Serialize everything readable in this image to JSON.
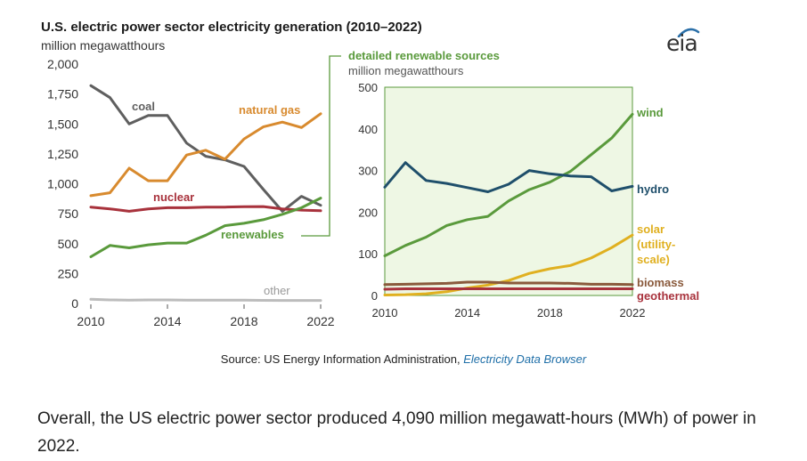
{
  "page": {
    "source_prefix": "Source: US Energy Information Administration, ",
    "source_link": "Electricity Data Browser",
    "caption": "Overall, the US electric power sector produced 4,090 million megawatt-hours (MWh) of power in 2022.",
    "logo": "eia"
  },
  "colors": {
    "coal": "#5f5f5f",
    "natural_gas": "#d88a2e",
    "nuclear": "#a8323c",
    "renewables": "#5a9a3c",
    "other": "#bcbcbc",
    "wind": "#5a9a3c",
    "hydro": "#1f4f6b",
    "solar": "#e0b020",
    "biomass": "#8a5a3c",
    "geothermal": "#a8323c",
    "panel_bg": "#eef7e4",
    "panel_border": "#5a9a3c"
  },
  "chart_data": [
    {
      "type": "line",
      "title": "U.S. electric power sector electricity generation (2010–2022)",
      "ylabel": "million megawatthours",
      "xlim": [
        2010,
        2022
      ],
      "ylim": [
        0,
        2000
      ],
      "x_ticks": [
        "2010",
        "2014",
        "2018",
        "2022"
      ],
      "y_ticks": [
        "0",
        "250",
        "500",
        "750",
        "1,000",
        "1,250",
        "1,500",
        "1,750",
        "2,000"
      ],
      "grid": false,
      "x": [
        2010,
        2011,
        2012,
        2013,
        2014,
        2015,
        2016,
        2017,
        2018,
        2019,
        2020,
        2021,
        2022
      ],
      "series": [
        {
          "name": "coal",
          "key": "coal",
          "values": [
            1820,
            1720,
            1500,
            1570,
            1570,
            1340,
            1230,
            1200,
            1145,
            955,
            770,
            895,
            820
          ]
        },
        {
          "name": "natural gas",
          "key": "natural_gas",
          "values": [
            900,
            925,
            1130,
            1025,
            1025,
            1240,
            1280,
            1205,
            1375,
            1475,
            1515,
            1470,
            1585
          ]
        },
        {
          "name": "nuclear",
          "key": "nuclear",
          "values": [
            805,
            790,
            770,
            790,
            800,
            800,
            805,
            805,
            808,
            810,
            790,
            780,
            775
          ]
        },
        {
          "name": "renewables",
          "key": "renewables",
          "values": [
            390,
            485,
            465,
            490,
            505,
            505,
            570,
            650,
            670,
            700,
            745,
            800,
            880
          ]
        },
        {
          "name": "other",
          "key": "other",
          "values": [
            35,
            30,
            28,
            30,
            30,
            28,
            28,
            28,
            28,
            26,
            25,
            25,
            25
          ]
        }
      ]
    },
    {
      "type": "line",
      "title": "detailed renewable sources",
      "ylabel": "million megawatthours",
      "xlim": [
        2010,
        2022
      ],
      "ylim": [
        0,
        500
      ],
      "x_ticks": [
        "2010",
        "2014",
        "2018",
        "2022"
      ],
      "y_ticks": [
        "0",
        "100",
        "200",
        "300",
        "400",
        "500"
      ],
      "grid": false,
      "x": [
        2010,
        2011,
        2012,
        2013,
        2014,
        2015,
        2016,
        2017,
        2018,
        2019,
        2020,
        2021,
        2022
      ],
      "series": [
        {
          "name": "wind",
          "key": "wind",
          "values": [
            95,
            120,
            140,
            168,
            182,
            190,
            227,
            254,
            272,
            298,
            338,
            378,
            435
          ]
        },
        {
          "name": "hydro",
          "key": "hydro",
          "values": [
            260,
            319,
            276,
            269,
            259,
            249,
            267,
            300,
            292,
            287,
            285,
            251,
            262
          ]
        },
        {
          "name": "solar (utility-scale)",
          "key": "solar",
          "values": [
            1,
            2,
            4,
            9,
            18,
            25,
            36,
            53,
            64,
            72,
            90,
            115,
            145
          ]
        },
        {
          "name": "biomass",
          "key": "biomass",
          "values": [
            26,
            27,
            28,
            29,
            32,
            32,
            30,
            30,
            30,
            29,
            27,
            27,
            26
          ]
        },
        {
          "name": "geothermal",
          "key": "geothermal",
          "values": [
            15,
            16,
            16,
            16,
            16,
            16,
            16,
            16,
            16,
            16,
            16,
            16,
            16
          ]
        }
      ]
    }
  ]
}
